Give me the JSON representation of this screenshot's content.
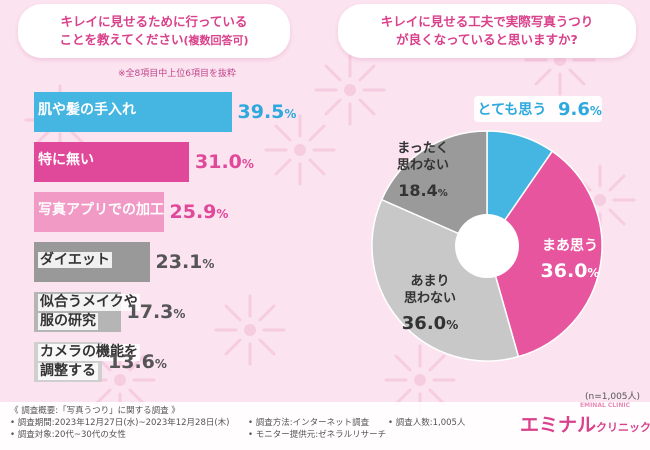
{
  "left_question": {
    "line1": "キレイに見せるために行っている",
    "line2": "ことを教えてください",
    "line2_small": "(複数回答可)"
  },
  "left_note": "※全8項目中上位6項目を抜粋",
  "right_question": {
    "line1": "キレイに見せる工夫で実際写真うつり",
    "line2": "が良くなっていると思いますか?"
  },
  "chart_data": [
    {
      "type": "bar",
      "orientation": "horizontal",
      "title": "キレイに見せるために行っていることを教えてください(複数回答可)",
      "unit": "%",
      "categories": [
        "肌や髪の手入れ",
        "特に無い",
        "写真アプリでの加工",
        "ダイエット",
        "似合うメイクや服の研究",
        "カメラの機能を調整する"
      ],
      "label_lines": [
        [
          "肌や髪の手入れ"
        ],
        [
          "特に無い"
        ],
        [
          "写真アプリでの加工"
        ],
        [
          "ダイエット"
        ],
        [
          "似合うメイクや",
          "服の研究"
        ],
        [
          "カメラの機能を",
          "調整する"
        ]
      ],
      "values": [
        39.5,
        31.0,
        25.9,
        23.1,
        17.3,
        13.6
      ],
      "value_labels": [
        "39.5",
        "31.0",
        "25.9",
        "23.1",
        "17.3",
        "13.6"
      ],
      "colors": [
        "#45b6e2",
        "#e0489a",
        "#f09ac5",
        "#999999",
        "#b5b5b5",
        "#cfcfcf"
      ],
      "label_colors": [
        "#ffffff",
        "#ffffff",
        "#ffffff",
        "#333333",
        "#333333",
        "#333333"
      ],
      "pct_colors": [
        "#2ea9dd",
        "#e0489a",
        "#e0489a",
        "#555555",
        "#555555",
        "#555555"
      ]
    },
    {
      "type": "pie",
      "title": "キレイに見せる工夫で実際写真うつりが良くなっていると思いますか?",
      "unit": "%",
      "slices": [
        {
          "label": "とても思う",
          "label_lines": [
            "とても思う"
          ],
          "value": 9.6,
          "value_label": "9.6",
          "color": "#45b6e2"
        },
        {
          "label": "まあ思う",
          "label_lines": [
            "まあ思う"
          ],
          "value": 36.0,
          "value_label": "36.0",
          "color": "#e8559f"
        },
        {
          "label": "あまり思わない",
          "label_lines": [
            "あまり",
            "思わない"
          ],
          "value": 36.0,
          "value_label": "36.0",
          "color": "#c8c8c8"
        },
        {
          "label": "まったく思わない",
          "label_lines": [
            "まったく",
            "思わない"
          ],
          "value": 18.4,
          "value_label": "18.4",
          "color": "#9a9a9a"
        }
      ],
      "sample_note": "(n=1,005人)"
    }
  ],
  "footer": {
    "summary": "《 調査概要:「写真うつり」に関する調査 》",
    "period": "• 調査期間:2023年12月27日(水)~2023年12月28日(木)",
    "target": "• 調査対象:20代~30代の女性",
    "method": "• 調査方法:インターネット調査",
    "provider": "• モニター提供元:ゼネラルリサーチ",
    "count": "• 調査人数:1,005人"
  },
  "brand": {
    "name": "エミナル",
    "sub": "クリニック",
    "tiny": "EMINAL CLINIC"
  }
}
